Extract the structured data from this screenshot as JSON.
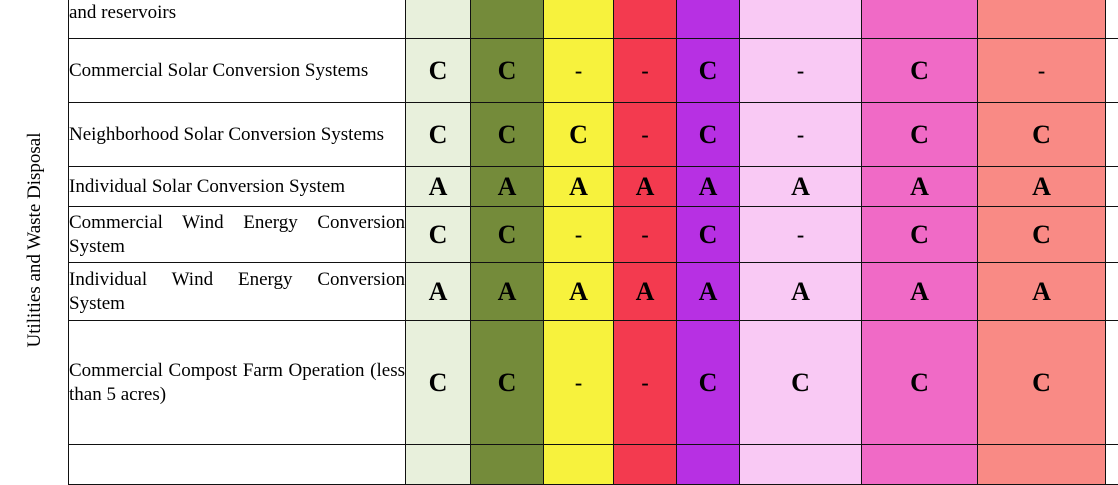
{
  "side_label": "Utilities and Waste Disposal",
  "zone_colors": [
    "#e8f0dc",
    "#748b3a",
    "#f7f23d",
    "#f33a4f",
    "#b730e3",
    "#f9c9f4",
    "#f06ac6",
    "#f98a85",
    "#ffffff"
  ],
  "rows": [
    {
      "name": "and reservoirs",
      "values": [
        "",
        "",
        "",
        "",
        "",
        "",
        "",
        "",
        ""
      ]
    },
    {
      "name": "Commercial Solar Conversion Systems",
      "values": [
        "C",
        "C",
        "-",
        "-",
        "C",
        "-",
        "C",
        "-",
        ""
      ]
    },
    {
      "name": "Neighborhood Solar Conversion Systems",
      "values": [
        "C",
        "C",
        "C",
        "-",
        "C",
        "-",
        "C",
        "C",
        ""
      ]
    },
    {
      "name": "Individual Solar Conversion System",
      "values": [
        "A",
        "A",
        "A",
        "A",
        "A",
        "A",
        "A",
        "A",
        ""
      ]
    },
    {
      "name": "Commercial Wind Energy Conversion System",
      "values": [
        "C",
        "C",
        "-",
        "-",
        "C",
        "-",
        "C",
        "C",
        ""
      ]
    },
    {
      "name": "Individual Wind Energy Conversion System",
      "values": [
        "A",
        "A",
        "A",
        "A",
        "A",
        "A",
        "A",
        "A",
        ""
      ]
    },
    {
      "name": "Commercial Compost Farm Operation (less than 5 acres)",
      "values": [
        "C",
        "C",
        "-",
        "-",
        "C",
        "C",
        "C",
        "C",
        ""
      ]
    },
    {
      "name": "",
      "values": [
        "",
        "",
        "",
        "",
        "",
        "",
        "",
        "",
        ""
      ]
    }
  ]
}
